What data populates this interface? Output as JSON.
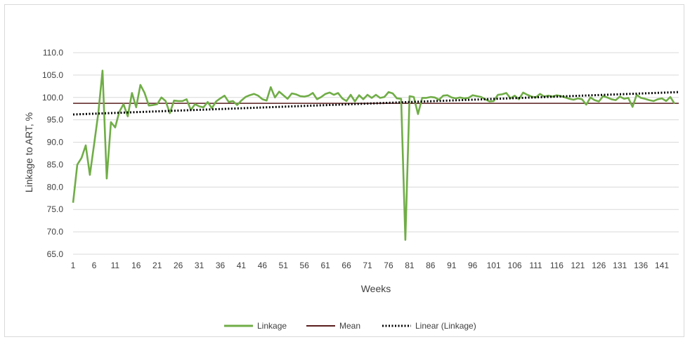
{
  "chart_data": {
    "type": "line",
    "title": "",
    "xlabel": "Weeks",
    "ylabel": "Linkage to ART, %",
    "ylim": [
      65,
      110
    ],
    "yticks": [
      "65.0",
      "70.0",
      "75.0",
      "80.0",
      "85.0",
      "90.0",
      "95.0",
      "100.0",
      "105.0",
      "110.0"
    ],
    "xticks": [
      1,
      6,
      11,
      16,
      21,
      26,
      31,
      36,
      41,
      46,
      51,
      56,
      61,
      66,
      71,
      76,
      81,
      86,
      91,
      96,
      101,
      106,
      111,
      116,
      121,
      126,
      131,
      136,
      141
    ],
    "x_range": [
      1,
      145
    ],
    "grid": true,
    "legend_position": "bottom",
    "colors": {
      "linkage": "#70ad47",
      "mean": "#5a1e1e",
      "trend": "#000000",
      "grid": "#d9d9d9"
    },
    "series": [
      {
        "name": "Linkage",
        "values": [
          76.5,
          85.0,
          86.5,
          89.3,
          82.7,
          89.5,
          96.5,
          106.0,
          81.9,
          94.5,
          93.3,
          96.8,
          98.5,
          95.8,
          101.0,
          97.8,
          102.8,
          101.0,
          98.2,
          98.3,
          98.5,
          100.0,
          99.2,
          96.5,
          99.3,
          99.2,
          99.2,
          99.6,
          97.2,
          98.5,
          98.0,
          97.8,
          99.0,
          97.6,
          99.1,
          99.8,
          100.4,
          99.0,
          99.2,
          98.3,
          99.3,
          100.1,
          100.5,
          100.8,
          100.4,
          99.6,
          99.3,
          102.3,
          100.0,
          101.3,
          100.5,
          99.7,
          100.9,
          100.7,
          100.3,
          100.2,
          100.4,
          101.0,
          99.6,
          100.1,
          100.8,
          101.1,
          100.6,
          101.0,
          99.8,
          99.2,
          100.6,
          99.1,
          100.5,
          99.6,
          100.6,
          99.9,
          100.6,
          99.9,
          100.1,
          101.2,
          100.9,
          99.8,
          99.7,
          68.2,
          100.3,
          100.1,
          96.3,
          99.9,
          99.9,
          100.1,
          100.0,
          99.5,
          100.4,
          100.5,
          100.0,
          99.8,
          100.0,
          99.8,
          99.9,
          100.5,
          100.3,
          100.1,
          99.6,
          99.1,
          99.2,
          100.6,
          100.7,
          101.0,
          99.8,
          100.4,
          99.6,
          101.1,
          100.6,
          100.2,
          100.0,
          100.8,
          100.2,
          100.4,
          100.2,
          100.5,
          100.3,
          100.0,
          99.7,
          99.5,
          99.8,
          99.6,
          98.4,
          100.0,
          99.4,
          99.1,
          100.3,
          100.0,
          99.6,
          99.4,
          100.2,
          99.7,
          99.9,
          97.9,
          100.6,
          99.9,
          99.7,
          99.4,
          99.2,
          99.6,
          99.8,
          99.2,
          100.1,
          98.6
        ]
      },
      {
        "name": "Mean",
        "value": 98.7
      },
      {
        "name": "Linear (Linkage)",
        "start": 96.2,
        "end": 101.2
      }
    ]
  }
}
